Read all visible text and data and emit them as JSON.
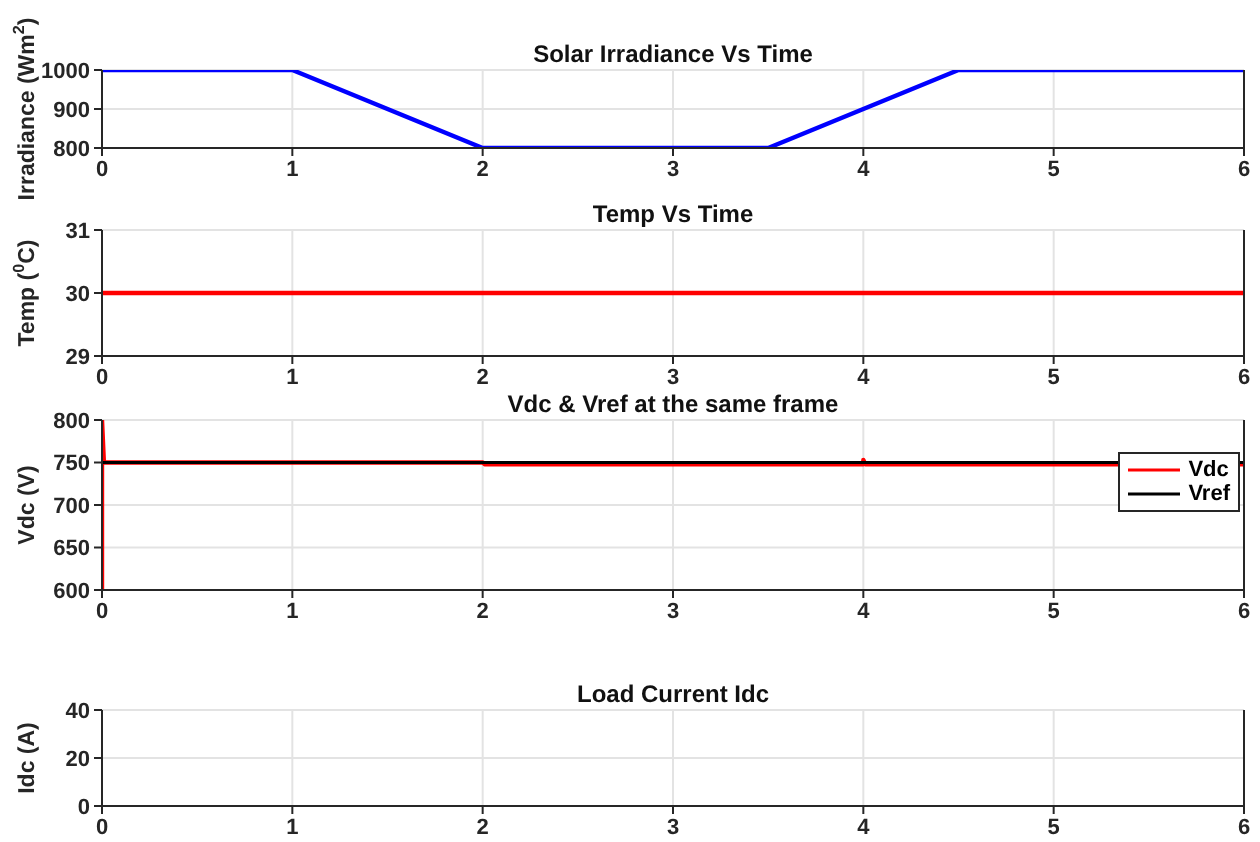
{
  "chart_data": [
    {
      "type": "line",
      "title": "Solar Irradiance Vs Time",
      "ylabel": "Irradiance (Wm$^{2}$)",
      "x": [
        0,
        1,
        2,
        3.5,
        4.5,
        6
      ],
      "series": [
        {
          "color": "#0000ff",
          "values": [
            1000,
            1000,
            800,
            800,
            1000,
            1000
          ]
        }
      ],
      "xlim": [
        0,
        6
      ],
      "xticks": [
        0,
        1,
        2,
        3,
        4,
        5,
        6
      ],
      "ylim": [
        800,
        1000
      ],
      "yticks": [
        800,
        900,
        1000
      ],
      "grid": true
    },
    {
      "type": "line",
      "title": "Temp Vs Time",
      "ylabel": "Temp ($^{0}$C)",
      "x": [
        0,
        6
      ],
      "series": [
        {
          "color": "#ff0000",
          "values": [
            30,
            30
          ]
        }
      ],
      "xlim": [
        0,
        6
      ],
      "xticks": [
        0,
        1,
        2,
        3,
        4,
        5,
        6
      ],
      "ylim": [
        29,
        31
      ],
      "yticks": [
        29,
        30,
        31
      ],
      "grid": true
    },
    {
      "type": "line",
      "title": "Vdc & Vref at the same frame",
      "ylabel": "Vdc (V)",
      "series": [
        {
          "name": "Vdc",
          "color": "#ff0000",
          "x": [
            0,
            0,
            0.01,
            2,
            2.01,
            4,
            4,
            4.01,
            6
          ],
          "values": [
            600,
            800,
            750,
            750,
            748,
            748,
            753,
            748,
            748
          ]
        },
        {
          "name": "Vref",
          "color": "#000000",
          "x": [
            0,
            6
          ],
          "values": [
            750,
            750
          ]
        }
      ],
      "xlim": [
        0,
        6
      ],
      "xticks": [
        0,
        1,
        2,
        3,
        4,
        5,
        6
      ],
      "ylim": [
        600,
        800
      ],
      "yticks": [
        600,
        650,
        700,
        750,
        800
      ],
      "grid": true,
      "legend": "top right"
    },
    {
      "type": "line",
      "title": "Load Current Idc",
      "ylabel": "Idc (A)",
      "xlim": [
        0,
        6
      ],
      "xticks": [
        0,
        1,
        2,
        3,
        4,
        5,
        6
      ],
      "ylim": [
        0,
        40
      ],
      "yticks": [
        0,
        20,
        40
      ],
      "grid": true
    }
  ]
}
